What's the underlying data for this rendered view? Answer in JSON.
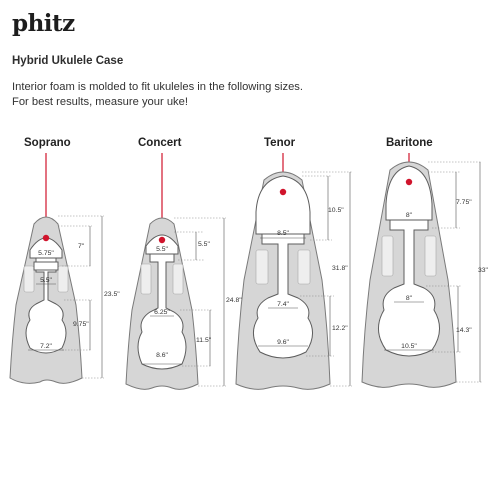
{
  "brand": {
    "logo_text": "phitz"
  },
  "header": {
    "title": "Hybrid Ukulele Case",
    "description_lines": [
      "Interior foam is molded to fit ukuleles in the following sizes.",
      "For best results, measure your uke!"
    ]
  },
  "colors": {
    "pin": "#d0142c",
    "shell": "#d6d6d6",
    "foam": "#ffffff"
  },
  "cases": [
    {
      "name": "Soprano",
      "head_width": "5.75\"",
      "head_length": "7\"",
      "upper_bout": "5.5\"",
      "lower_length": "9.75\"",
      "body_width": "7.2\"",
      "total_length": "23.5\""
    },
    {
      "name": "Concert",
      "head_width": "5.5\"",
      "head_length": "5.5\"",
      "upper_bout": "6.25\"",
      "lower_length": "11.5\"",
      "body_width": "8.6\"",
      "total_length": "24.8\""
    },
    {
      "name": "Tenor",
      "head_width": "8.5\"",
      "head_length": "10.5\"",
      "upper_bout": "7.4\"",
      "lower_length": "12.2\"",
      "body_width": "9.6\"",
      "total_length": "31.8\""
    },
    {
      "name": "Baritone",
      "head_width": "8\"",
      "head_length": "7.75\"",
      "upper_bout": "8\"",
      "lower_length": "14.3\"",
      "body_width": "10.5\"",
      "total_length": "33\""
    }
  ]
}
